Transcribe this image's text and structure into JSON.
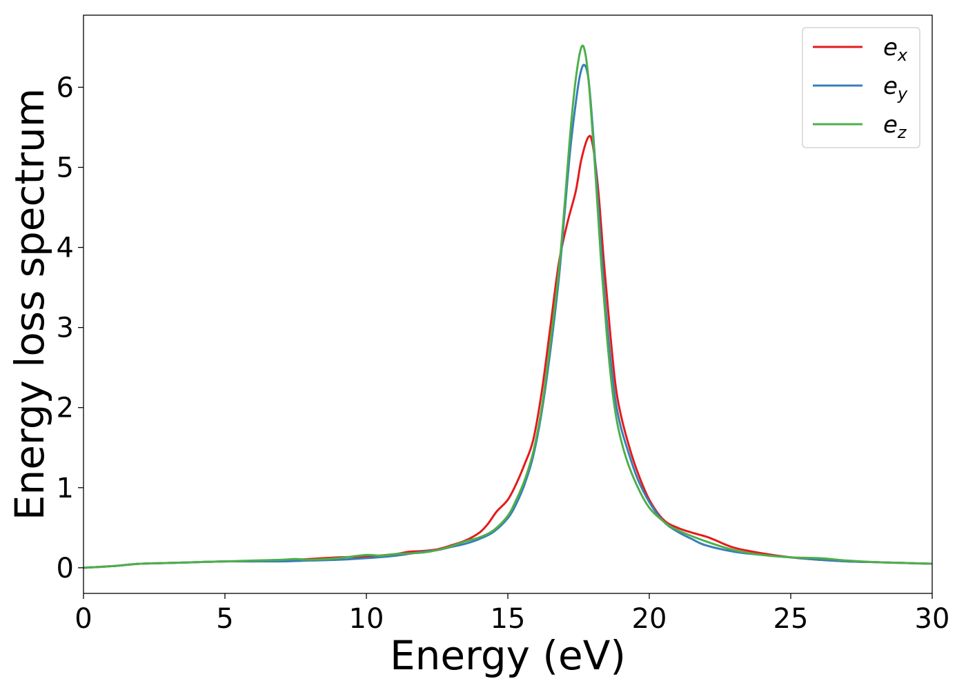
{
  "chart_data": {
    "type": "line",
    "title": "",
    "xlabel": "Energy (eV)",
    "ylabel": "Energy loss spectrum",
    "xlim": [
      0,
      30
    ],
    "ylim": [
      -0.32,
      6.9
    ],
    "xticks": [
      0,
      5,
      10,
      15,
      20,
      25,
      30
    ],
    "yticks": [
      0,
      1,
      2,
      3,
      4,
      5,
      6
    ],
    "grid": false,
    "legend_position": "top-right",
    "series": [
      {
        "name": "e",
        "subscript": "x",
        "color": "#e41a1c",
        "points": [
          [
            0,
            0.0
          ],
          [
            1,
            0.02
          ],
          [
            2,
            0.05
          ],
          [
            3,
            0.06
          ],
          [
            4,
            0.07
          ],
          [
            5,
            0.08
          ],
          [
            6,
            0.08
          ],
          [
            7,
            0.09
          ],
          [
            8,
            0.11
          ],
          [
            9,
            0.13
          ],
          [
            10,
            0.14
          ],
          [
            11,
            0.17
          ],
          [
            11.5,
            0.2
          ],
          [
            12,
            0.21
          ],
          [
            12.5,
            0.23
          ],
          [
            13,
            0.28
          ],
          [
            13.5,
            0.34
          ],
          [
            14,
            0.44
          ],
          [
            14.3,
            0.55
          ],
          [
            14.6,
            0.7
          ],
          [
            15,
            0.85
          ],
          [
            15.3,
            1.05
          ],
          [
            15.6,
            1.3
          ],
          [
            15.9,
            1.6
          ],
          [
            16.2,
            2.2
          ],
          [
            16.5,
            3.0
          ],
          [
            16.8,
            3.8
          ],
          [
            17.1,
            4.3
          ],
          [
            17.4,
            4.7
          ],
          [
            17.6,
            5.1
          ],
          [
            17.85,
            5.38
          ],
          [
            18.0,
            5.28
          ],
          [
            18.2,
            4.7
          ],
          [
            18.4,
            3.8
          ],
          [
            18.6,
            3.0
          ],
          [
            18.8,
            2.3
          ],
          [
            19.0,
            1.9
          ],
          [
            19.3,
            1.5
          ],
          [
            19.6,
            1.18
          ],
          [
            20.0,
            0.85
          ],
          [
            20.5,
            0.6
          ],
          [
            21.0,
            0.5
          ],
          [
            21.5,
            0.44
          ],
          [
            22.0,
            0.39
          ],
          [
            22.3,
            0.35
          ],
          [
            23.0,
            0.25
          ],
          [
            24.0,
            0.18
          ],
          [
            25.0,
            0.13
          ],
          [
            26.0,
            0.1
          ],
          [
            27.0,
            0.08
          ],
          [
            28.0,
            0.07
          ],
          [
            29.0,
            0.06
          ],
          [
            30.0,
            0.05
          ]
        ]
      },
      {
        "name": "e",
        "subscript": "y",
        "color": "#377eb8",
        "points": [
          [
            0,
            0.0
          ],
          [
            1,
            0.02
          ],
          [
            2,
            0.05
          ],
          [
            3,
            0.06
          ],
          [
            4,
            0.07
          ],
          [
            5,
            0.08
          ],
          [
            6,
            0.08
          ],
          [
            7,
            0.08
          ],
          [
            8,
            0.09
          ],
          [
            9,
            0.1
          ],
          [
            10,
            0.12
          ],
          [
            11,
            0.15
          ],
          [
            12,
            0.2
          ],
          [
            12.5,
            0.22
          ],
          [
            13,
            0.26
          ],
          [
            13.5,
            0.3
          ],
          [
            14,
            0.36
          ],
          [
            14.5,
            0.45
          ],
          [
            15,
            0.62
          ],
          [
            15.3,
            0.8
          ],
          [
            15.6,
            1.05
          ],
          [
            15.9,
            1.4
          ],
          [
            16.2,
            1.95
          ],
          [
            16.5,
            2.7
          ],
          [
            16.8,
            3.6
          ],
          [
            17.0,
            4.4
          ],
          [
            17.2,
            5.2
          ],
          [
            17.4,
            5.8
          ],
          [
            17.55,
            6.15
          ],
          [
            17.7,
            6.28
          ],
          [
            17.85,
            6.1
          ],
          [
            18.0,
            5.5
          ],
          [
            18.2,
            4.5
          ],
          [
            18.4,
            3.5
          ],
          [
            18.6,
            2.7
          ],
          [
            18.8,
            2.1
          ],
          [
            19.0,
            1.75
          ],
          [
            19.3,
            1.4
          ],
          [
            19.6,
            1.1
          ],
          [
            20.0,
            0.82
          ],
          [
            20.5,
            0.58
          ],
          [
            21.0,
            0.45
          ],
          [
            21.5,
            0.36
          ],
          [
            22.0,
            0.28
          ],
          [
            23.0,
            0.2
          ],
          [
            24.0,
            0.16
          ],
          [
            25.0,
            0.13
          ],
          [
            26.0,
            0.1
          ],
          [
            27.0,
            0.08
          ],
          [
            28.0,
            0.07
          ],
          [
            29.0,
            0.06
          ],
          [
            30.0,
            0.05
          ]
        ]
      },
      {
        "name": "e",
        "subscript": "z",
        "color": "#4daf4a",
        "points": [
          [
            0,
            0.0
          ],
          [
            1,
            0.02
          ],
          [
            2,
            0.05
          ],
          [
            3,
            0.06
          ],
          [
            4,
            0.07
          ],
          [
            5,
            0.08
          ],
          [
            6,
            0.09
          ],
          [
            7,
            0.1
          ],
          [
            7.5,
            0.11
          ],
          [
            8,
            0.1
          ],
          [
            9,
            0.12
          ],
          [
            10,
            0.16
          ],
          [
            10.5,
            0.15
          ],
          [
            11,
            0.17
          ],
          [
            12,
            0.19
          ],
          [
            12.5,
            0.22
          ],
          [
            13,
            0.27
          ],
          [
            13.5,
            0.33
          ],
          [
            14,
            0.38
          ],
          [
            14.5,
            0.47
          ],
          [
            15,
            0.65
          ],
          [
            15.3,
            0.85
          ],
          [
            15.6,
            1.1
          ],
          [
            15.9,
            1.45
          ],
          [
            16.2,
            2.0
          ],
          [
            16.5,
            2.8
          ],
          [
            16.8,
            3.7
          ],
          [
            17.0,
            4.5
          ],
          [
            17.2,
            5.4
          ],
          [
            17.4,
            6.1
          ],
          [
            17.6,
            6.5
          ],
          [
            17.75,
            6.4
          ],
          [
            17.9,
            5.9
          ],
          [
            18.1,
            4.9
          ],
          [
            18.3,
            3.8
          ],
          [
            18.5,
            2.9
          ],
          [
            18.7,
            2.2
          ],
          [
            18.9,
            1.75
          ],
          [
            19.2,
            1.35
          ],
          [
            19.6,
            1.0
          ],
          [
            20.0,
            0.75
          ],
          [
            20.5,
            0.58
          ],
          [
            21.0,
            0.47
          ],
          [
            22.0,
            0.33
          ],
          [
            23.0,
            0.22
          ],
          [
            24.0,
            0.16
          ],
          [
            25.0,
            0.13
          ],
          [
            26.0,
            0.12
          ],
          [
            27.0,
            0.09
          ],
          [
            28.0,
            0.07
          ],
          [
            29.0,
            0.06
          ],
          [
            30.0,
            0.05
          ]
        ]
      }
    ]
  }
}
